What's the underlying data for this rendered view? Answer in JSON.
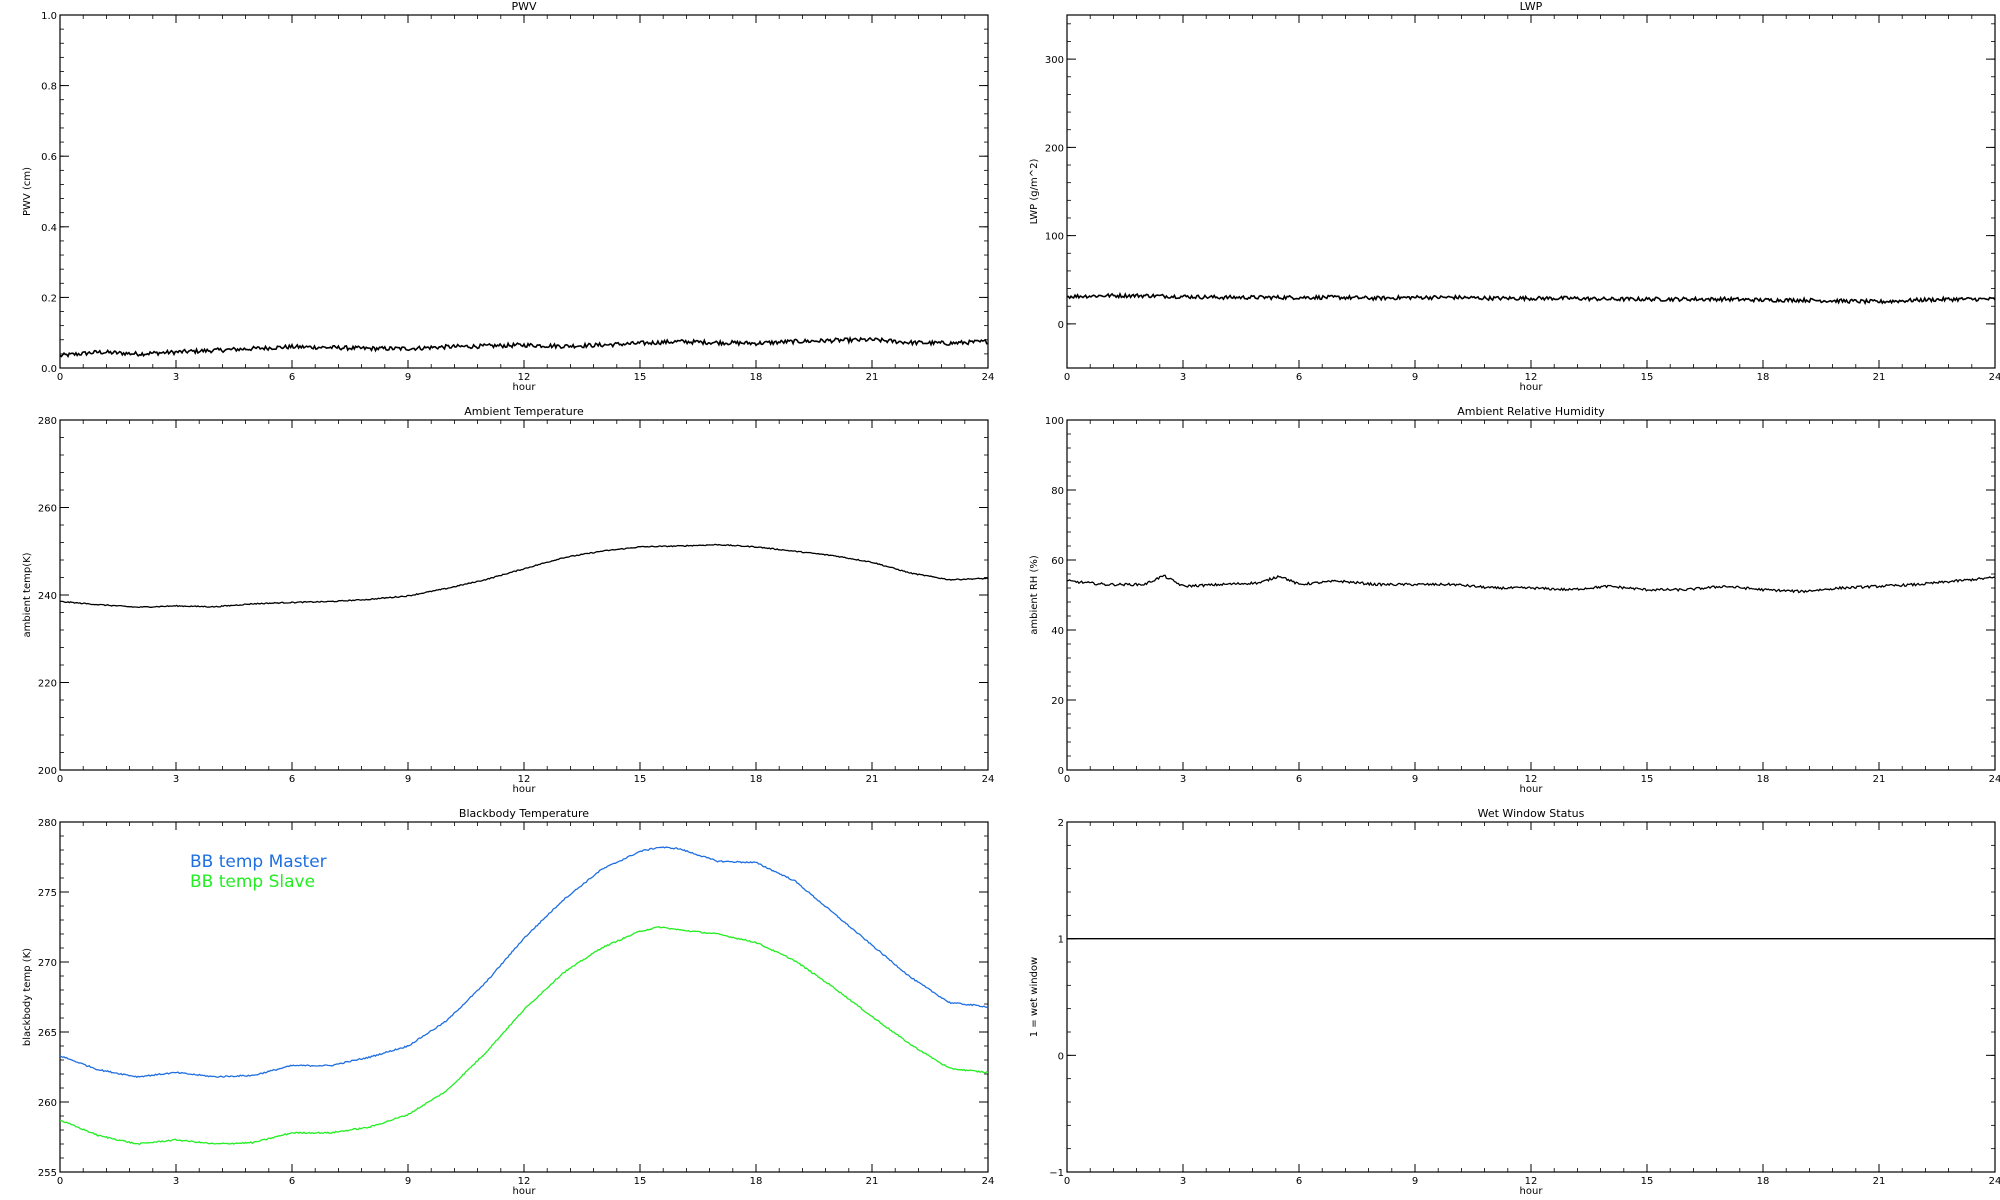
{
  "chart_data": [
    {
      "type": "line",
      "title": "PWV",
      "xlabel": "hour",
      "ylabel": "PWV (cm)",
      "xlim": [
        0,
        24
      ],
      "ylim": [
        0,
        1.0
      ],
      "xticks": [
        0,
        3,
        6,
        9,
        12,
        15,
        18,
        21,
        24
      ],
      "xtick_labels": [
        "0",
        "3",
        "6",
        "9",
        "12",
        "15",
        "18",
        "21",
        "24"
      ],
      "yticks": [
        0,
        0.2,
        0.4,
        0.6,
        0.8,
        1.0
      ],
      "ytick_labels": [
        "0.0",
        "0.2",
        "0.4",
        "0.6",
        "0.8",
        "1.0"
      ],
      "grid": false,
      "series": [
        {
          "color": "#000000",
          "x": [
            0,
            1,
            2,
            3,
            4,
            5,
            6,
            7,
            8,
            9,
            10,
            11,
            12,
            13,
            14,
            15,
            16,
            17,
            18,
            19,
            20,
            21,
            22,
            23,
            24
          ],
          "y": [
            0.035,
            0.045,
            0.04,
            0.045,
            0.05,
            0.055,
            0.06,
            0.058,
            0.055,
            0.055,
            0.06,
            0.062,
            0.065,
            0.062,
            0.065,
            0.07,
            0.075,
            0.072,
            0.07,
            0.075,
            0.078,
            0.08,
            0.072,
            0.07,
            0.075
          ]
        }
      ]
    },
    {
      "type": "line",
      "title": "LWP",
      "xlabel": "hour",
      "ylabel": "LWP (g/m^2)",
      "xlim": [
        0,
        24
      ],
      "ylim": [
        -50,
        350
      ],
      "xticks": [
        0,
        3,
        6,
        9,
        12,
        15,
        18,
        21,
        24
      ],
      "xtick_labels": [
        "0",
        "3",
        "6",
        "9",
        "12",
        "15",
        "18",
        "21",
        "24"
      ],
      "yticks": [
        0,
        100,
        200,
        300
      ],
      "ytick_labels": [
        "0",
        "100",
        "200",
        "300"
      ],
      "grid": false,
      "series": [
        {
          "color": "#000000",
          "x": [
            0,
            1,
            2,
            3,
            4,
            5,
            6,
            7,
            8,
            9,
            10,
            11,
            12,
            13,
            14,
            15,
            16,
            17,
            18,
            19,
            20,
            21,
            22,
            23,
            24
          ],
          "y": [
            31,
            32,
            32,
            31,
            30,
            30,
            30,
            30,
            29,
            30,
            30,
            29,
            29,
            29,
            28,
            28,
            28,
            28,
            27,
            27,
            26,
            25,
            27,
            28,
            28
          ]
        }
      ]
    },
    {
      "type": "line",
      "title": "Ambient Temperature",
      "xlabel": "hour",
      "ylabel": "ambient temp(K)",
      "xlim": [
        0,
        24
      ],
      "ylim": [
        200,
        280
      ],
      "xticks": [
        0,
        3,
        6,
        9,
        12,
        15,
        18,
        21,
        24
      ],
      "xtick_labels": [
        "0",
        "3",
        "6",
        "9",
        "12",
        "15",
        "18",
        "21",
        "24"
      ],
      "yticks": [
        200,
        220,
        240,
        260,
        280
      ],
      "ytick_labels": [
        "200",
        "220",
        "240",
        "260",
        "280"
      ],
      "grid": false,
      "series": [
        {
          "color": "#000000",
          "x": [
            0,
            1,
            2,
            3,
            4,
            5,
            6,
            7,
            8,
            9,
            10,
            11,
            12,
            13,
            14,
            15,
            16,
            17,
            18,
            19,
            20,
            21,
            22,
            23,
            24
          ],
          "y": [
            238.5,
            237.8,
            237.2,
            237.5,
            237.3,
            238.0,
            238.3,
            238.5,
            239.0,
            239.8,
            241.5,
            243.5,
            246.0,
            248.5,
            250.0,
            251.0,
            251.2,
            251.5,
            251.0,
            250.0,
            249.0,
            247.5,
            245.0,
            243.5,
            243.8
          ]
        }
      ]
    },
    {
      "type": "line",
      "title": "Ambient Relative Humidity",
      "xlabel": "hour",
      "ylabel": "ambient RH (%)",
      "xlim": [
        0,
        24
      ],
      "ylim": [
        0,
        100
      ],
      "xticks": [
        0,
        3,
        6,
        9,
        12,
        15,
        18,
        21,
        24
      ],
      "xtick_labels": [
        "0",
        "3",
        "6",
        "9",
        "12",
        "15",
        "18",
        "21",
        "24"
      ],
      "yticks": [
        0,
        20,
        40,
        60,
        80,
        100
      ],
      "ytick_labels": [
        "0",
        "20",
        "40",
        "60",
        "80",
        "100"
      ],
      "grid": false,
      "series": [
        {
          "color": "#000000",
          "x": [
            0,
            1,
            2,
            2.5,
            3,
            4,
            5,
            5.5,
            6,
            7,
            8,
            9,
            10,
            11,
            12,
            13,
            14,
            15,
            16,
            17,
            18,
            19,
            20,
            21,
            22,
            23,
            24
          ],
          "y": [
            54,
            53,
            53,
            55.5,
            52.5,
            53,
            53.5,
            55.5,
            53,
            54,
            53,
            53,
            53,
            52,
            52,
            51.5,
            52.5,
            51.5,
            51.5,
            52.5,
            51.5,
            51,
            52,
            52.5,
            53,
            54,
            55
          ]
        }
      ]
    },
    {
      "type": "line",
      "title": "Blackbody Temperature",
      "xlabel": "hour",
      "ylabel": "blackbody temp (K)",
      "xlim": [
        0,
        24
      ],
      "ylim": [
        255,
        280
      ],
      "xticks": [
        0,
        3,
        6,
        9,
        12,
        15,
        18,
        21,
        24
      ],
      "xtick_labels": [
        "0",
        "3",
        "6",
        "9",
        "12",
        "15",
        "18",
        "21",
        "24"
      ],
      "yticks": [
        255,
        260,
        265,
        270,
        275,
        280
      ],
      "ytick_labels": [
        "255",
        "260",
        "265",
        "270",
        "275",
        "280"
      ],
      "grid": false,
      "legend": "top-left",
      "series": [
        {
          "name": "BB temp Master",
          "color": "#1f6fe0",
          "x": [
            0,
            1,
            2,
            3,
            4,
            5,
            6,
            7,
            8,
            9,
            10,
            11,
            12,
            13,
            14,
            15,
            15.5,
            16,
            17,
            18,
            19,
            20,
            21,
            22,
            23,
            24
          ],
          "y": [
            263.3,
            262.3,
            261.8,
            262.1,
            261.8,
            261.9,
            262.6,
            262.6,
            263.2,
            264.0,
            265.8,
            268.5,
            271.7,
            274.4,
            276.6,
            277.9,
            278.2,
            278.1,
            277.2,
            277.1,
            275.8,
            273.5,
            271.2,
            268.9,
            267.1,
            266.8
          ]
        },
        {
          "name": "BB temp Slave",
          "color": "#22ee22",
          "x": [
            0,
            1,
            2,
            3,
            4,
            5,
            6,
            7,
            8,
            9,
            10,
            11,
            12,
            13,
            14,
            15,
            15.5,
            16,
            17,
            18,
            19,
            20,
            21,
            22,
            23,
            24
          ],
          "y": [
            258.7,
            257.6,
            257.0,
            257.3,
            257.0,
            257.1,
            257.8,
            257.8,
            258.2,
            259.1,
            260.8,
            263.5,
            266.6,
            269.2,
            271.0,
            272.2,
            272.5,
            272.3,
            272.0,
            271.4,
            270.1,
            268.2,
            266.1,
            264.1,
            262.4,
            262.1
          ]
        }
      ]
    },
    {
      "type": "line",
      "title": "Wet Window Status",
      "xlabel": "hour",
      "ylabel": "1 = wet window",
      "xlim": [
        0,
        24
      ],
      "ylim": [
        -1,
        2
      ],
      "xticks": [
        0,
        3,
        6,
        9,
        12,
        15,
        18,
        21,
        24
      ],
      "xtick_labels": [
        "0",
        "3",
        "6",
        "9",
        "12",
        "15",
        "18",
        "21",
        "24"
      ],
      "yticks": [
        -1,
        0,
        1,
        2
      ],
      "ytick_labels": [
        "−1",
        "0",
        "1",
        "2"
      ],
      "grid": false,
      "series": [
        {
          "color": "#000000",
          "x": [
            0,
            24
          ],
          "y": [
            1,
            1
          ]
        }
      ]
    }
  ]
}
